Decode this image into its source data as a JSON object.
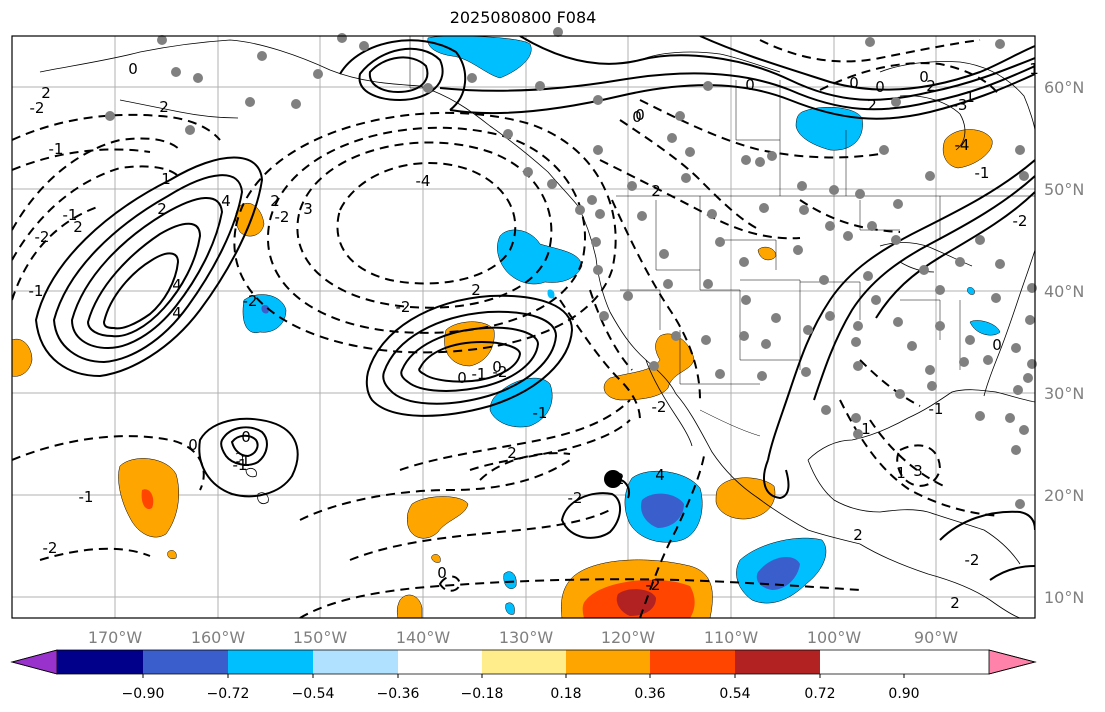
{
  "title": "2025080800 F084",
  "longitude_labels": [
    "170°W",
    "160°W",
    "150°W",
    "140°W",
    "130°W",
    "120°W",
    "110°W",
    "100°W",
    "90°W"
  ],
  "latitude_labels": [
    "60°N",
    "50°N",
    "40°N",
    "30°N",
    "20°N",
    "10°N"
  ],
  "colorbar": {
    "tick_labels": [
      "−0.90",
      "−0.72",
      "−0.54",
      "−0.36",
      "−0.18",
      "0.18",
      "0.36",
      "0.54",
      "0.72",
      "0.90"
    ],
    "colors": [
      "#9932cc",
      "#00008b",
      "#3a5fcd",
      "#00bfff",
      "#b0e2ff",
      "#ffffff",
      "#ffec8b",
      "#ffa500",
      "#ff4500",
      "#b22222",
      "#ff82ab"
    ]
  },
  "contour_labels": [
    "0",
    "2",
    "-2",
    "2",
    "-4",
    "2",
    "4",
    "-2",
    "2",
    "-2",
    "4",
    "-2",
    "4",
    "-2",
    "2",
    "0",
    "3",
    "2",
    "0",
    "-1",
    "-2",
    "2",
    "-2",
    "0",
    "-1",
    "-2",
    "-4",
    "1",
    "2",
    "-1",
    "0",
    "-3",
    "-1",
    "2",
    "0",
    "-1",
    "1",
    "-1",
    "-1",
    "-2",
    "0",
    "0",
    "-1",
    "-2",
    "0",
    "4",
    "-2",
    "2",
    "0",
    "-2",
    "2",
    "2",
    "3",
    "-1",
    "1",
    "-2",
    "0",
    "1",
    "0",
    "0",
    "1",
    "-1"
  ],
  "marker_points": {
    "filled_circle_position": "near 121°W, 21°N"
  }
}
